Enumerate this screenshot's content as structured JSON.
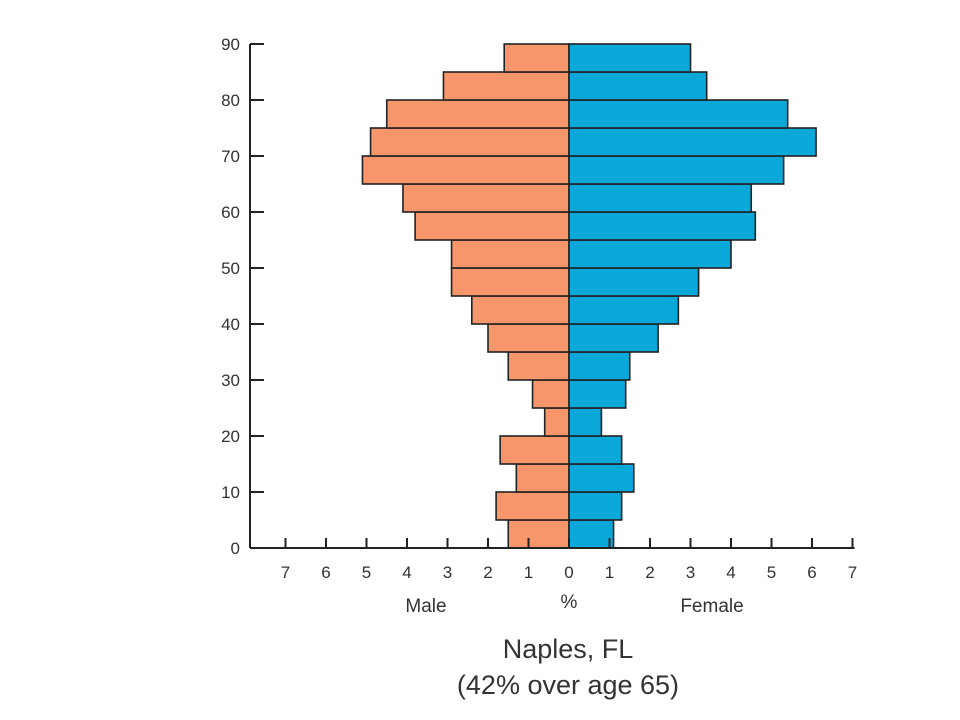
{
  "chart_data": {
    "type": "bar",
    "orientation": "horizontal-population-pyramid",
    "title": "Naples, FL",
    "subtitle": "(42% over age 65)",
    "xlabel": "%",
    "side_labels": {
      "left": "Male",
      "right": "Female"
    },
    "x_ticks": [
      "7",
      "6",
      "5",
      "4",
      "3",
      "2",
      "1",
      "0",
      "1",
      "2",
      "3",
      "4",
      "5",
      "6",
      "7"
    ],
    "xlim": [
      -7,
      7
    ],
    "y_ticks": [
      "0",
      "10",
      "20",
      "30",
      "40",
      "50",
      "60",
      "70",
      "80",
      "90"
    ],
    "ylim": [
      0,
      90
    ],
    "bin_width": 5,
    "grid": false,
    "categories": [
      0,
      5,
      10,
      15,
      20,
      25,
      30,
      35,
      40,
      45,
      50,
      55,
      60,
      65,
      70,
      75,
      80,
      85
    ],
    "series": [
      {
        "name": "Male",
        "color": "#f7966b",
        "values": [
          1.5,
          1.8,
          1.3,
          1.7,
          0.6,
          0.9,
          1.5,
          2.0,
          2.4,
          2.9,
          2.9,
          3.8,
          4.1,
          5.1,
          4.9,
          4.5,
          3.1,
          1.6
        ]
      },
      {
        "name": "Female",
        "color": "#0aa8d8",
        "values": [
          1.1,
          1.3,
          1.6,
          1.3,
          0.8,
          1.4,
          1.5,
          2.2,
          2.7,
          3.2,
          4.0,
          4.6,
          4.5,
          5.3,
          6.1,
          5.4,
          3.4,
          3.0
        ]
      }
    ]
  }
}
